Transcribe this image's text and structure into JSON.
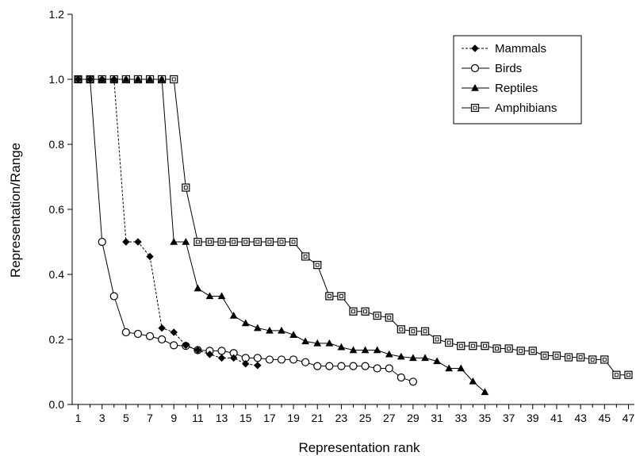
{
  "chart_data": {
    "type": "line",
    "title": "",
    "xlabel": "Representation rank",
    "ylabel": "Representation/Range",
    "xlim": [
      0.5,
      47.5
    ],
    "ylim": [
      0,
      1.2
    ],
    "xticks": [
      1,
      3,
      5,
      7,
      9,
      11,
      13,
      15,
      17,
      19,
      21,
      23,
      25,
      27,
      29,
      31,
      33,
      35,
      37,
      39,
      41,
      43,
      45,
      47
    ],
    "yticks": [
      0.0,
      0.2,
      0.4,
      0.6,
      0.8,
      1.0,
      1.2
    ],
    "ytick_labels": [
      "0.0",
      "0.2",
      "0.4",
      "0.6",
      "0.8",
      "1.0",
      "1.2"
    ],
    "grid": false,
    "legend_position": "top-right",
    "series": [
      {
        "name": "Mammals",
        "marker": "diamond",
        "line_style": "dashed",
        "x": [
          1,
          2,
          3,
          4,
          5,
          6,
          7,
          8,
          9,
          10,
          11,
          12,
          13,
          14,
          15,
          16
        ],
        "y": [
          1.0,
          1.0,
          1.0,
          1.0,
          0.5,
          0.5,
          0.455,
          0.235,
          0.222,
          0.182,
          0.167,
          0.154,
          0.143,
          0.143,
          0.125,
          0.12
        ]
      },
      {
        "name": "Birds",
        "marker": "circle",
        "line_style": "solid",
        "x": [
          1,
          2,
          3,
          4,
          5,
          6,
          7,
          8,
          9,
          10,
          11,
          12,
          13,
          14,
          15,
          16,
          17,
          18,
          19,
          20,
          21,
          22,
          23,
          24,
          25,
          26,
          27,
          28,
          29
        ],
        "y": [
          1.0,
          1.0,
          0.5,
          0.333,
          0.222,
          0.217,
          0.21,
          0.2,
          0.182,
          0.18,
          0.167,
          0.165,
          0.165,
          0.158,
          0.143,
          0.143,
          0.138,
          0.138,
          0.138,
          0.13,
          0.118,
          0.118,
          0.118,
          0.118,
          0.118,
          0.111,
          0.111,
          0.083,
          0.07
        ]
      },
      {
        "name": "Reptiles",
        "marker": "triangle",
        "line_style": "solid",
        "x": [
          1,
          2,
          3,
          4,
          5,
          6,
          7,
          8,
          9,
          10,
          11,
          12,
          13,
          14,
          15,
          16,
          17,
          18,
          19,
          20,
          21,
          22,
          23,
          24,
          25,
          26,
          27,
          28,
          29,
          30,
          31,
          32,
          33,
          34,
          35
        ],
        "y": [
          1.0,
          1.0,
          1.0,
          1.0,
          1.0,
          1.0,
          1.0,
          1.0,
          0.5,
          0.5,
          0.357,
          0.333,
          0.333,
          0.273,
          0.25,
          0.235,
          0.227,
          0.227,
          0.214,
          0.194,
          0.188,
          0.188,
          0.176,
          0.167,
          0.167,
          0.167,
          0.154,
          0.147,
          0.143,
          0.143,
          0.133,
          0.111,
          0.111,
          0.071,
          0.038
        ]
      },
      {
        "name": "Amphibians",
        "marker": "square",
        "line_style": "solid",
        "x": [
          1,
          2,
          3,
          4,
          5,
          6,
          7,
          8,
          9,
          10,
          11,
          12,
          13,
          14,
          15,
          16,
          17,
          18,
          19,
          20,
          21,
          22,
          23,
          24,
          25,
          26,
          27,
          28,
          29,
          30,
          31,
          32,
          33,
          34,
          35,
          36,
          37,
          38,
          39,
          40,
          41,
          42,
          43,
          44,
          45,
          46,
          47
        ],
        "y": [
          1.0,
          1.0,
          1.0,
          1.0,
          1.0,
          1.0,
          1.0,
          1.0,
          1.0,
          0.667,
          0.5,
          0.5,
          0.5,
          0.5,
          0.5,
          0.5,
          0.5,
          0.5,
          0.5,
          0.455,
          0.429,
          0.333,
          0.333,
          0.286,
          0.286,
          0.273,
          0.267,
          0.231,
          0.225,
          0.225,
          0.2,
          0.19,
          0.18,
          0.18,
          0.18,
          0.172,
          0.172,
          0.165,
          0.165,
          0.15,
          0.15,
          0.145,
          0.145,
          0.138,
          0.138,
          0.091,
          0.091
        ]
      }
    ]
  }
}
